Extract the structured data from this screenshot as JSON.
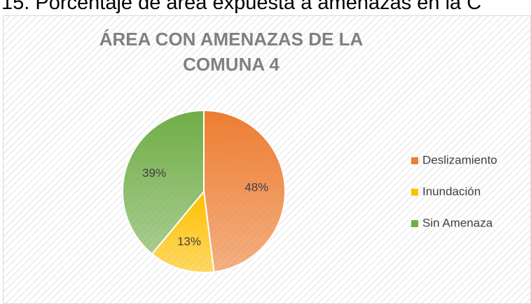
{
  "caption": "15. Porcentaje de área expuesta a amenazas en la C",
  "chart_data": {
    "type": "pie",
    "title": "ÁREA CON AMENAZAS DE LA COMUNA 4",
    "categories": [
      "Deslizamiento",
      "Inundación",
      "Sin Amenaza"
    ],
    "values": [
      48,
      13,
      39
    ],
    "value_labels": [
      "48%",
      "13%",
      "39%"
    ],
    "colors": [
      "#ED7D31",
      "#FFC000",
      "#70AD47"
    ],
    "legend": "right"
  }
}
